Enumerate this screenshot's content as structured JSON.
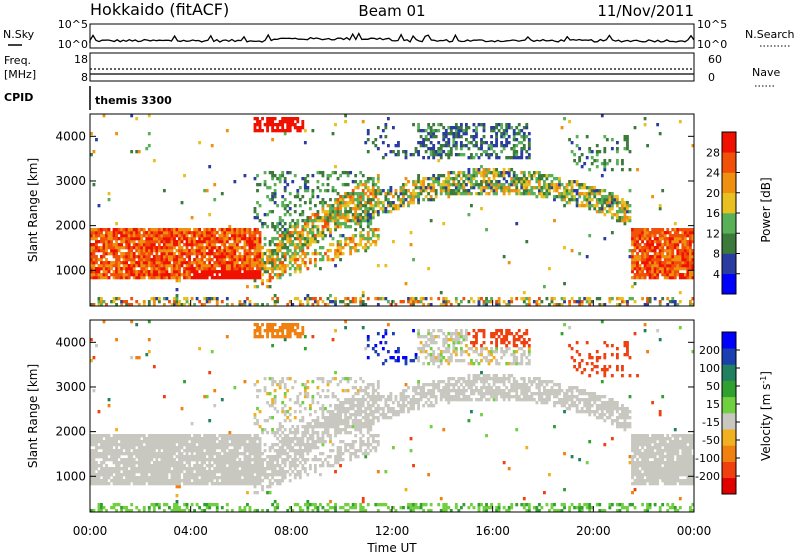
{
  "header": {
    "radar_title": "Hokkaido (fitACF)",
    "beam_label": "Beam 01",
    "date_label": "11/Nov/2011"
  },
  "strip_labels": {
    "nsky": "N.Sky",
    "nsearch": "N.Search",
    "freq_line1": "Freq.",
    "freq_line2": "[MHz]",
    "nave": "Nave",
    "cpid": "CPID",
    "cpid_value": "themis 3300"
  },
  "strip_ticks": {
    "noise_left": [
      "10^5",
      "10^0"
    ],
    "noise_right": [
      "10^5",
      "10^0"
    ],
    "freq_left": [
      "18",
      "8"
    ],
    "nave_right": [
      "60",
      "0"
    ]
  },
  "colors": {
    "power_scale": [
      "#0000ff",
      "#2a3ca0",
      "#3c7a3c",
      "#58b058",
      "#e8c020",
      "#f09010",
      "#f05008",
      "#f01000"
    ],
    "velocity_scale": [
      "#e00000",
      "#f04010",
      "#f08010",
      "#f0b020",
      "#c8c8c0",
      "#70d040",
      "#30a030",
      "#208060",
      "#1a40b0",
      "#0000ff"
    ]
  },
  "chart_data": [
    {
      "type": "heatmap",
      "panel": "power",
      "xlabel": "",
      "ylabel": "Slant Range [km]",
      "ylim": [
        200,
        4500
      ],
      "xlim": [
        "00:00",
        "24:00"
      ],
      "y_ticks": [
        "1000",
        "2000",
        "3000",
        "4000"
      ],
      "colorbar": {
        "label": "Power [dB]",
        "ticks": [
          "4",
          "8",
          "12",
          "16",
          "20",
          "24",
          "28"
        ],
        "range": [
          0,
          32
        ]
      }
    },
    {
      "type": "heatmap",
      "panel": "velocity",
      "xlabel": "Time UT",
      "ylabel": "Slant Range [km]",
      "ylim": [
        200,
        4500
      ],
      "xlim": [
        "00:00",
        "24:00"
      ],
      "x_ticks": [
        "00:00",
        "04:00",
        "08:00",
        "12:00",
        "16:00",
        "20:00",
        "00:00"
      ],
      "y_ticks": [
        "1000",
        "2000",
        "3000",
        "4000"
      ],
      "colorbar": {
        "label": "Velocity [m s^-1]",
        "ticks": [
          "200",
          "100",
          "50",
          "15",
          "-15",
          "-50",
          "-100",
          "-200"
        ],
        "range": [
          -250,
          250
        ]
      }
    }
  ]
}
